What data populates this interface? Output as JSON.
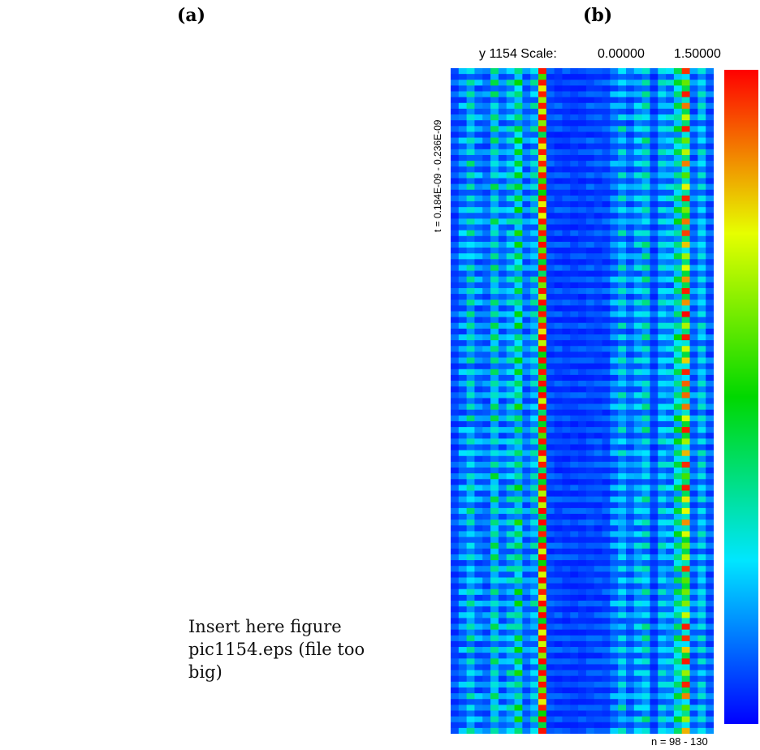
{
  "panels": {
    "a": "(a)",
    "b": "(b)"
  },
  "placeholder_text": "Insert here figure pic1154.eps (file too big)",
  "chart_data": {
    "type": "heatmap",
    "title": "y 1154 Scale:",
    "scale_min_label": "0.00000",
    "scale_max_label": "1.50000",
    "zlim": [
      0,
      1.5
    ],
    "ylabel": "t = 0.184E-09 - 0.236E-09",
    "xlabel": "n = 98 - 130",
    "x_range": [
      98,
      130
    ],
    "colormap": [
      "#0000ff",
      "#00e6ff",
      "#00d800",
      "#e6ff00",
      "#ff0000"
    ],
    "columns": 33,
    "rows": 115,
    "column_profiles": [
      {
        "n": 98,
        "base": 0.12,
        "peak": 0.2
      },
      {
        "n": 99,
        "base": 0.2,
        "peak": 0.38
      },
      {
        "n": 100,
        "base": 0.35,
        "peak": 0.6
      },
      {
        "n": 101,
        "base": 0.2,
        "peak": 0.35
      },
      {
        "n": 102,
        "base": 0.18,
        "peak": 0.3
      },
      {
        "n": 103,
        "base": 0.42,
        "peak": 0.7
      },
      {
        "n": 104,
        "base": 0.2,
        "peak": 0.35
      },
      {
        "n": 105,
        "base": 0.3,
        "peak": 0.55
      },
      {
        "n": 106,
        "base": 0.5,
        "peak": 0.8
      },
      {
        "n": 107,
        "base": 0.2,
        "peak": 0.3
      },
      {
        "n": 108,
        "base": 0.3,
        "peak": 0.55
      },
      {
        "n": 109,
        "base": 1.45,
        "peak": 1.5
      },
      {
        "n": 110,
        "base": 0.12,
        "peak": 0.2
      },
      {
        "n": 111,
        "base": 0.1,
        "peak": 0.2
      },
      {
        "n": 112,
        "base": 0.1,
        "peak": 0.18
      },
      {
        "n": 113,
        "base": 0.1,
        "peak": 0.18
      },
      {
        "n": 114,
        "base": 0.1,
        "peak": 0.18
      },
      {
        "n": 115,
        "base": 0.12,
        "peak": 0.2
      },
      {
        "n": 116,
        "base": 0.12,
        "peak": 0.2
      },
      {
        "n": 117,
        "base": 0.12,
        "peak": 0.2
      },
      {
        "n": 118,
        "base": 0.2,
        "peak": 0.35
      },
      {
        "n": 119,
        "base": 0.3,
        "peak": 0.55
      },
      {
        "n": 120,
        "base": 0.18,
        "peak": 0.3
      },
      {
        "n": 121,
        "base": 0.28,
        "peak": 0.45
      },
      {
        "n": 122,
        "base": 0.35,
        "peak": 0.6
      },
      {
        "n": 123,
        "base": 0.12,
        "peak": 0.2
      },
      {
        "n": 124,
        "base": 0.3,
        "peak": 0.5
      },
      {
        "n": 125,
        "base": 0.25,
        "peak": 0.45
      },
      {
        "n": 126,
        "base": 0.5,
        "peak": 0.75
      },
      {
        "n": 127,
        "base": 0.85,
        "peak": 1.5
      },
      {
        "n": 128,
        "base": 0.18,
        "peak": 0.3
      },
      {
        "n": 129,
        "base": 0.35,
        "peak": 0.5
      },
      {
        "n": 130,
        "base": 0.15,
        "peak": 0.25
      }
    ]
  }
}
